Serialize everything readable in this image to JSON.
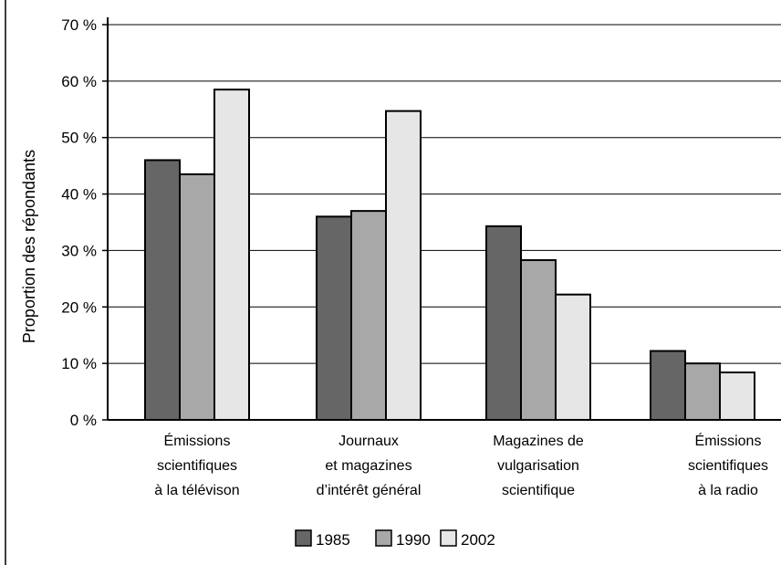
{
  "chart_data": {
    "type": "bar",
    "title": "",
    "xlabel": "",
    "ylabel": "Proportion des répondants",
    "ylim": [
      0,
      70
    ],
    "yticks": [
      0,
      10,
      20,
      30,
      40,
      50,
      60,
      70
    ],
    "ytick_labels": [
      "0 %",
      "10 %",
      "20 %",
      "30 %",
      "40 %",
      "50 %",
      "60 %",
      "70 %"
    ],
    "grid": "horizontal",
    "legend_position": "bottom",
    "categories": [
      [
        "Émissions",
        "scientifiques",
        "à la télévison"
      ],
      [
        "Journaux",
        "et magazines",
        "d’intérêt général"
      ],
      [
        "Magazines de",
        "vulgarisation",
        "scientifique"
      ],
      [
        "Émissions",
        "scientifiques",
        "à la radio"
      ]
    ],
    "series": [
      {
        "name": "1985",
        "color": "#666666",
        "values": [
          46,
          36,
          34.3,
          12.2
        ]
      },
      {
        "name": "1990",
        "color": "#a8a8a8",
        "values": [
          43.5,
          37,
          28.3,
          10
        ]
      },
      {
        "name": "2002",
        "color": "#e6e6e6",
        "values": [
          58.5,
          54.7,
          22.2,
          8.4
        ]
      }
    ]
  }
}
